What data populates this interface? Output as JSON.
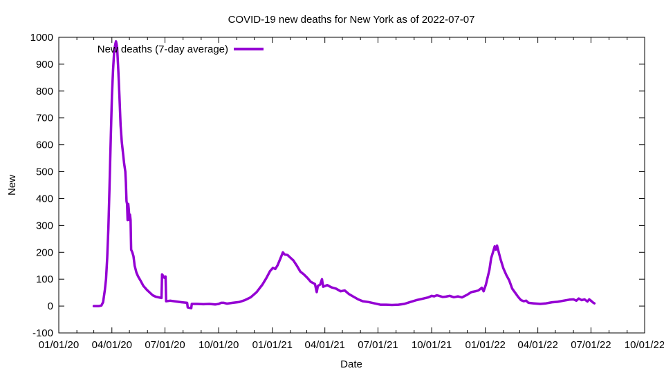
{
  "chart_data": {
    "type": "line",
    "title": "COVID-19 new deaths for New York as of 2022-07-07",
    "xlabel": "Date",
    "ylabel": "New",
    "x_is_date": true,
    "xlim": [
      "2020-01-01",
      "2022-10-01"
    ],
    "ylim": [
      -100,
      1000
    ],
    "y_ticks": [
      -100,
      0,
      100,
      200,
      300,
      400,
      500,
      600,
      700,
      800,
      900,
      1000
    ],
    "x_ticks": [
      {
        "date": "2020-01-01",
        "label": "01/01/20"
      },
      {
        "date": "2020-04-01",
        "label": "04/01/20"
      },
      {
        "date": "2020-07-01",
        "label": "07/01/20"
      },
      {
        "date": "2020-10-01",
        "label": "10/01/20"
      },
      {
        "date": "2021-01-01",
        "label": "01/01/21"
      },
      {
        "date": "2021-04-01",
        "label": "04/01/21"
      },
      {
        "date": "2021-07-01",
        "label": "07/01/21"
      },
      {
        "date": "2021-10-01",
        "label": "10/01/21"
      },
      {
        "date": "2022-01-01",
        "label": "01/01/22"
      },
      {
        "date": "2022-04-01",
        "label": "04/01/22"
      },
      {
        "date": "2022-07-01",
        "label": "07/01/22"
      },
      {
        "date": "2022-10-01",
        "label": "10/01/22"
      }
    ],
    "legend_position": "top-left",
    "grid": false,
    "series": [
      {
        "name": "New deaths (7-day average)",
        "color": "#9400d3",
        "points": [
          [
            "2020-03-01",
            0
          ],
          [
            "2020-03-10",
            0
          ],
          [
            "2020-03-14",
            2
          ],
          [
            "2020-03-17",
            15
          ],
          [
            "2020-03-20",
            60
          ],
          [
            "2020-03-22",
            100
          ],
          [
            "2020-03-24",
            180
          ],
          [
            "2020-03-26",
            290
          ],
          [
            "2020-03-28",
            450
          ],
          [
            "2020-03-30",
            620
          ],
          [
            "2020-04-01",
            780
          ],
          [
            "2020-04-03",
            880
          ],
          [
            "2020-04-05",
            950
          ],
          [
            "2020-04-07",
            975
          ],
          [
            "2020-04-08",
            985
          ],
          [
            "2020-04-09",
            975
          ],
          [
            "2020-04-10",
            960
          ],
          [
            "2020-04-12",
            880
          ],
          [
            "2020-04-14",
            780
          ],
          [
            "2020-04-16",
            670
          ],
          [
            "2020-04-18",
            610
          ],
          [
            "2020-04-20",
            570
          ],
          [
            "2020-04-22",
            530
          ],
          [
            "2020-04-24",
            500
          ],
          [
            "2020-04-25",
            460
          ],
          [
            "2020-04-26",
            390
          ],
          [
            "2020-04-27",
            380
          ],
          [
            "2020-04-28",
            320
          ],
          [
            "2020-04-29",
            380
          ],
          [
            "2020-04-30",
            360
          ],
          [
            "2020-05-01",
            320
          ],
          [
            "2020-05-02",
            340
          ],
          [
            "2020-05-03",
            320
          ],
          [
            "2020-05-04",
            210
          ],
          [
            "2020-05-06",
            200
          ],
          [
            "2020-05-08",
            185
          ],
          [
            "2020-05-10",
            150
          ],
          [
            "2020-05-13",
            125
          ],
          [
            "2020-05-16",
            110
          ],
          [
            "2020-05-20",
            95
          ],
          [
            "2020-05-25",
            75
          ],
          [
            "2020-05-31",
            60
          ],
          [
            "2020-06-05",
            50
          ],
          [
            "2020-06-10",
            40
          ],
          [
            "2020-06-15",
            35
          ],
          [
            "2020-06-25",
            30
          ],
          [
            "2020-06-26",
            118
          ],
          [
            "2020-06-28",
            112
          ],
          [
            "2020-06-30",
            105
          ],
          [
            "2020-07-02",
            110
          ],
          [
            "2020-07-03",
            18
          ],
          [
            "2020-07-10",
            20
          ],
          [
            "2020-07-20",
            17
          ],
          [
            "2020-07-30",
            14
          ],
          [
            "2020-08-08",
            12
          ],
          [
            "2020-08-09",
            -5
          ],
          [
            "2020-08-15",
            -8
          ],
          [
            "2020-08-16",
            8
          ],
          [
            "2020-08-25",
            8
          ],
          [
            "2020-09-05",
            7
          ],
          [
            "2020-09-15",
            8
          ],
          [
            "2020-09-25",
            6
          ],
          [
            "2020-10-01",
            8
          ],
          [
            "2020-10-05",
            12
          ],
          [
            "2020-10-10",
            12
          ],
          [
            "2020-10-15",
            9
          ],
          [
            "2020-10-25",
            12
          ],
          [
            "2020-11-05",
            15
          ],
          [
            "2020-11-15",
            22
          ],
          [
            "2020-11-25",
            33
          ],
          [
            "2020-12-05",
            52
          ],
          [
            "2020-12-15",
            80
          ],
          [
            "2020-12-22",
            105
          ],
          [
            "2020-12-28",
            130
          ],
          [
            "2021-01-02",
            142
          ],
          [
            "2021-01-06",
            138
          ],
          [
            "2021-01-10",
            152
          ],
          [
            "2021-01-15",
            178
          ],
          [
            "2021-01-19",
            200
          ],
          [
            "2021-01-22",
            192
          ],
          [
            "2021-01-27",
            190
          ],
          [
            "2021-02-01",
            180
          ],
          [
            "2021-02-06",
            170
          ],
          [
            "2021-02-12",
            150
          ],
          [
            "2021-02-18",
            128
          ],
          [
            "2021-02-24",
            118
          ],
          [
            "2021-03-02",
            105
          ],
          [
            "2021-03-08",
            90
          ],
          [
            "2021-03-15",
            82
          ],
          [
            "2021-03-18",
            52
          ],
          [
            "2021-03-20",
            75
          ],
          [
            "2021-03-24",
            80
          ],
          [
            "2021-03-27",
            100
          ],
          [
            "2021-03-29",
            72
          ],
          [
            "2021-04-05",
            78
          ],
          [
            "2021-04-12",
            70
          ],
          [
            "2021-04-20",
            65
          ],
          [
            "2021-04-28",
            55
          ],
          [
            "2021-05-05",
            58
          ],
          [
            "2021-05-12",
            45
          ],
          [
            "2021-05-20",
            35
          ],
          [
            "2021-05-28",
            25
          ],
          [
            "2021-06-05",
            18
          ],
          [
            "2021-06-15",
            15
          ],
          [
            "2021-06-25",
            10
          ],
          [
            "2021-07-05",
            5
          ],
          [
            "2021-07-15",
            5
          ],
          [
            "2021-07-25",
            4
          ],
          [
            "2021-08-05",
            5
          ],
          [
            "2021-08-15",
            8
          ],
          [
            "2021-08-25",
            15
          ],
          [
            "2021-09-05",
            22
          ],
          [
            "2021-09-15",
            27
          ],
          [
            "2021-09-25",
            32
          ],
          [
            "2021-10-01",
            38
          ],
          [
            "2021-10-05",
            36
          ],
          [
            "2021-10-10",
            40
          ],
          [
            "2021-10-15",
            37
          ],
          [
            "2021-10-20",
            34
          ],
          [
            "2021-10-25",
            35
          ],
          [
            "2021-11-01",
            38
          ],
          [
            "2021-11-08",
            33
          ],
          [
            "2021-11-15",
            36
          ],
          [
            "2021-11-22",
            32
          ],
          [
            "2021-12-01",
            42
          ],
          [
            "2021-12-08",
            52
          ],
          [
            "2021-12-15",
            55
          ],
          [
            "2021-12-20",
            58
          ],
          [
            "2021-12-26",
            68
          ],
          [
            "2021-12-29",
            55
          ],
          [
            "2022-01-02",
            80
          ],
          [
            "2022-01-05",
            108
          ],
          [
            "2022-01-08",
            135
          ],
          [
            "2022-01-11",
            178
          ],
          [
            "2022-01-14",
            200
          ],
          [
            "2022-01-17",
            222
          ],
          [
            "2022-01-19",
            210
          ],
          [
            "2022-01-21",
            225
          ],
          [
            "2022-01-24",
            200
          ],
          [
            "2022-01-27",
            175
          ],
          [
            "2022-02-01",
            140
          ],
          [
            "2022-02-06",
            115
          ],
          [
            "2022-02-11",
            95
          ],
          [
            "2022-02-16",
            65
          ],
          [
            "2022-02-21",
            50
          ],
          [
            "2022-02-26",
            35
          ],
          [
            "2022-03-03",
            22
          ],
          [
            "2022-03-08",
            18
          ],
          [
            "2022-03-12",
            20
          ],
          [
            "2022-03-16",
            12
          ],
          [
            "2022-03-25",
            10
          ],
          [
            "2022-04-05",
            8
          ],
          [
            "2022-04-15",
            10
          ],
          [
            "2022-04-25",
            14
          ],
          [
            "2022-05-05",
            16
          ],
          [
            "2022-05-15",
            20
          ],
          [
            "2022-05-25",
            24
          ],
          [
            "2022-06-01",
            25
          ],
          [
            "2022-06-06",
            20
          ],
          [
            "2022-06-10",
            28
          ],
          [
            "2022-06-15",
            22
          ],
          [
            "2022-06-20",
            25
          ],
          [
            "2022-06-25",
            17
          ],
          [
            "2022-06-28",
            25
          ],
          [
            "2022-07-01",
            20
          ],
          [
            "2022-07-04",
            14
          ],
          [
            "2022-07-07",
            10
          ]
        ]
      }
    ]
  }
}
